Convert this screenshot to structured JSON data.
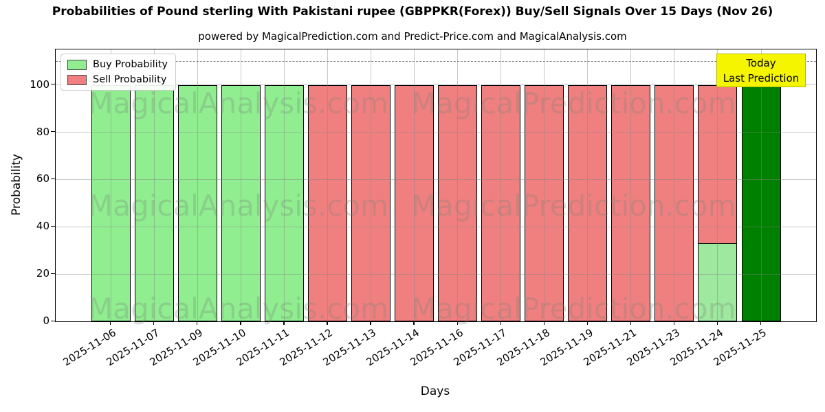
{
  "title": "Probabilities of Pound sterling With Pakistani rupee (GBPPKR(Forex)) Buy/Sell Signals Over 15 Days (Nov 26)",
  "subtitle": "powered by MagicalPrediction.com and Predict-Price.com and MagicalAnalysis.com",
  "legend": {
    "items": [
      {
        "label": "Buy Probability",
        "color_key": "buy"
      },
      {
        "label": "Sell Probability",
        "color_key": "sell"
      }
    ]
  },
  "annotation": {
    "line1": "Today",
    "line2": "Last Prediction"
  },
  "watermarks": {
    "left": "MagicalAnalysis.com",
    "right": "MagicalPrediction.com"
  },
  "axes": {
    "ylabel": "Probability",
    "xlabel": "Days",
    "yticks": [
      0,
      20,
      40,
      60,
      80,
      100
    ],
    "ylim": [
      0,
      115
    ],
    "dashed_line_y": 110,
    "grid": true
  },
  "colors": {
    "buy": "#90EE90",
    "sell": "#F08080",
    "buy_forecast": "#9FE89F",
    "today": "#008000",
    "annotation_bg": "#F5F500",
    "annotation_border": "#B5B500"
  },
  "chart_data": {
    "type": "bar",
    "title": "Probabilities of Pound sterling With Pakistani rupee (GBPPKR(Forex)) Buy/Sell Signals Over 15 Days (Nov 26)",
    "xlabel": "Days",
    "ylabel": "Probability",
    "ylim": [
      0,
      115
    ],
    "legend_position": "upper left",
    "categories": [
      "2025-11-06",
      "2025-11-07",
      "2025-11-09",
      "2025-11-10",
      "2025-11-11",
      "2025-11-12",
      "2025-11-13",
      "2025-11-14",
      "2025-11-16",
      "2025-11-17",
      "2025-11-18",
      "2025-11-19",
      "2025-11-21",
      "2025-11-23",
      "2025-11-24",
      "2025-11-25"
    ],
    "series": [
      {
        "name": "Buy Probability",
        "values": [
          100,
          100,
          100,
          100,
          100,
          0,
          0,
          0,
          0,
          0,
          0,
          0,
          0,
          0,
          33,
          0
        ]
      },
      {
        "name": "Sell Probability",
        "values": [
          0,
          0,
          0,
          0,
          0,
          100,
          100,
          100,
          100,
          100,
          100,
          100,
          100,
          100,
          100,
          0
        ]
      },
      {
        "name": "Today Last Prediction",
        "values": [
          0,
          0,
          0,
          0,
          0,
          0,
          0,
          0,
          0,
          0,
          0,
          0,
          0,
          0,
          0,
          100
        ]
      }
    ]
  }
}
